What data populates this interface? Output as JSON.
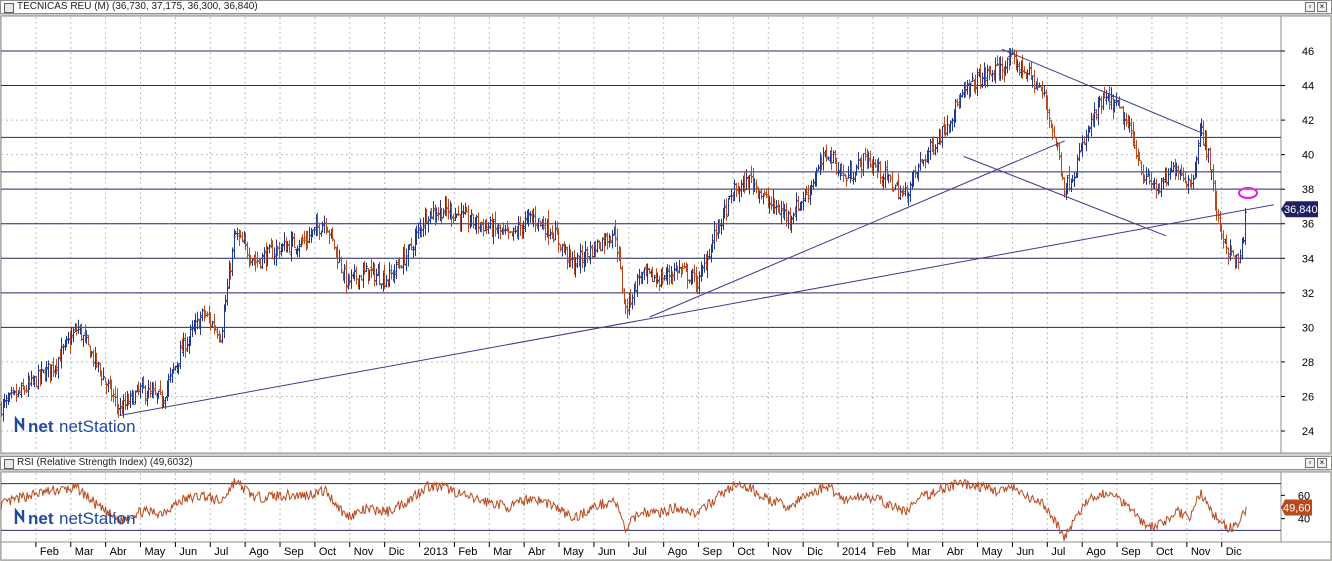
{
  "main_pane": {
    "title": "TECNICAS REU (M) (36,730, 37,175, 36,300, 36,840)",
    "price_tag": "36,840",
    "logo": "netStation"
  },
  "rsi_pane": {
    "title": "RSI (Relative Strength Index) (49,6032)",
    "value_tag": "49,60",
    "logo": "netStation"
  },
  "colors": {
    "background": "#ffffff",
    "grid": "#bdbdbd",
    "horizontal_lines": "#2a2a6a",
    "trendlines": "#3b3b8a",
    "bars_up": "#203890",
    "bars_down": "#b84a1e",
    "rsi_line": "#b84a1e",
    "highlight_ellipse": "#e020e0",
    "price_tag_bg": "#202060",
    "rsi_tag_bg": "#b84a1e"
  },
  "chart_data": [
    {
      "type": "line",
      "subtype": "ohlc-bars",
      "title": "TECNICAS REU (M) (36,730, 37,175, 36,300, 36,840)",
      "ylim": [
        23,
        47
      ],
      "yticks": [
        24,
        26,
        28,
        30,
        32,
        34,
        36,
        38,
        40,
        42,
        44,
        46
      ],
      "ytick_labels": [
        "24",
        "26",
        "28",
        "30",
        "32",
        "34",
        "36",
        "38",
        "40",
        "42",
        "44",
        "46"
      ],
      "x_labels": [
        "Feb",
        "Mar",
        "Abr",
        "May",
        "Jun",
        "Jul",
        "Ago",
        "Sep",
        "Oct",
        "Nov",
        "Dic",
        "2013",
        "Feb",
        "Mar",
        "Abr",
        "May",
        "Jun",
        "Jul",
        "Ago",
        "Sep",
        "Oct",
        "Nov",
        "Dic",
        "2014",
        "Feb",
        "Mar",
        "Abr",
        "May",
        "Jun",
        "Jul",
        "Ago",
        "Sep",
        "Oct",
        "Nov",
        "Dic"
      ],
      "x_range_months": [
        0,
        36.7
      ],
      "x_label_month_index": [
        1,
        2,
        3,
        4,
        5,
        6,
        7,
        8,
        9,
        10,
        11,
        12,
        13,
        14,
        15,
        16,
        17,
        18,
        19,
        20,
        21,
        22,
        23,
        24,
        25,
        26,
        27,
        28,
        29,
        30,
        31,
        32,
        33,
        34,
        35
      ],
      "horizontal_levels": [
        30,
        32,
        34,
        36,
        38,
        39,
        41,
        44,
        46
      ],
      "trendlines": [
        {
          "from": [
            3.4,
            24.9
          ],
          "to": [
            36.5,
            37.1
          ]
        },
        {
          "from": [
            18.6,
            30.6
          ],
          "to": [
            30.5,
            40.8
          ]
        },
        {
          "from": [
            28.7,
            46.1
          ],
          "to": [
            34.5,
            41.2
          ]
        },
        {
          "from": [
            27.6,
            39.9
          ],
          "to": [
            33.4,
            35.3
          ]
        }
      ],
      "price_anchors": [
        [
          0,
          25.4
        ],
        [
          0.8,
          26.6
        ],
        [
          1.5,
          27.8
        ],
        [
          2.2,
          30.0
        ],
        [
          2.8,
          27.6
        ],
        [
          3.4,
          25.2
        ],
        [
          4.0,
          26.4
        ],
        [
          4.6,
          25.8
        ],
        [
          5.2,
          28.8
        ],
        [
          5.8,
          30.8
        ],
        [
          6.3,
          29.6
        ],
        [
          6.7,
          35.4
        ],
        [
          7.3,
          33.8
        ],
        [
          8.0,
          34.6
        ],
        [
          8.7,
          35.0
        ],
        [
          9.3,
          36.2
        ],
        [
          9.9,
          32.6
        ],
        [
          10.5,
          33.2
        ],
        [
          11.1,
          32.8
        ],
        [
          11.7,
          34.4
        ],
        [
          12.2,
          36.6
        ],
        [
          12.8,
          36.8
        ],
        [
          13.4,
          36.2
        ],
        [
          14.0,
          35.8
        ],
        [
          14.6,
          35.2
        ],
        [
          15.2,
          36.4
        ],
        [
          15.8,
          35.6
        ],
        [
          16.4,
          33.6
        ],
        [
          17.0,
          34.6
        ],
        [
          17.6,
          35.6
        ],
        [
          17.9,
          31.0
        ],
        [
          18.3,
          33.0
        ],
        [
          18.9,
          32.8
        ],
        [
          19.4,
          33.4
        ],
        [
          20.0,
          32.6
        ],
        [
          20.5,
          35.6
        ],
        [
          21.0,
          37.8
        ],
        [
          21.5,
          38.6
        ],
        [
          22.0,
          37.2
        ],
        [
          22.6,
          36.4
        ],
        [
          23.1,
          37.8
        ],
        [
          23.7,
          40.2
        ],
        [
          24.2,
          38.6
        ],
        [
          24.8,
          39.8
        ],
        [
          25.3,
          38.8
        ],
        [
          25.9,
          37.6
        ],
        [
          26.4,
          39.6
        ],
        [
          27.0,
          41.4
        ],
        [
          27.5,
          43.2
        ],
        [
          28.0,
          44.4
        ],
        [
          28.5,
          44.8
        ],
        [
          29.0,
          45.4
        ],
        [
          29.4,
          44.8
        ],
        [
          29.9,
          43.4
        ],
        [
          30.3,
          40.2
        ],
        [
          30.5,
          38.0
        ],
        [
          30.8,
          39.2
        ],
        [
          31.2,
          41.6
        ],
        [
          31.6,
          43.2
        ],
        [
          32.0,
          42.8
        ],
        [
          32.4,
          41.2
        ],
        [
          32.8,
          38.6
        ],
        [
          33.2,
          38.0
        ],
        [
          33.7,
          39.4
        ],
        [
          34.1,
          38.2
        ],
        [
          34.4,
          41.4
        ],
        [
          34.6,
          40.2
        ],
        [
          34.9,
          36.0
        ],
        [
          35.2,
          34.4
        ],
        [
          35.5,
          33.6
        ],
        [
          35.7,
          36.84
        ]
      ]
    },
    {
      "type": "line",
      "title": "RSI (Relative Strength Index) (49,6032)",
      "ylim": [
        20,
        80
      ],
      "yticks": [
        40,
        60
      ],
      "ytick_labels": [
        "40",
        "60"
      ],
      "horizontal_levels": [
        30,
        70
      ],
      "last_value": 49.6,
      "rsi_anchors": [
        [
          0,
          52
        ],
        [
          0.8,
          60
        ],
        [
          1.5,
          64
        ],
        [
          2.2,
          66
        ],
        [
          2.8,
          50
        ],
        [
          3.4,
          38
        ],
        [
          4.0,
          46
        ],
        [
          4.6,
          45
        ],
        [
          5.2,
          56
        ],
        [
          5.8,
          60
        ],
        [
          6.3,
          54
        ],
        [
          6.7,
          72
        ],
        [
          7.3,
          58
        ],
        [
          8.0,
          60
        ],
        [
          8.7,
          60
        ],
        [
          9.3,
          64
        ],
        [
          9.9,
          42
        ],
        [
          10.5,
          48
        ],
        [
          11.1,
          46
        ],
        [
          11.7,
          56
        ],
        [
          12.2,
          68
        ],
        [
          12.8,
          66
        ],
        [
          13.4,
          58
        ],
        [
          14.0,
          54
        ],
        [
          14.6,
          50
        ],
        [
          15.2,
          58
        ],
        [
          15.8,
          52
        ],
        [
          16.4,
          40
        ],
        [
          17.0,
          50
        ],
        [
          17.6,
          56
        ],
        [
          17.9,
          30
        ],
        [
          18.3,
          46
        ],
        [
          18.9,
          45
        ],
        [
          19.4,
          50
        ],
        [
          20.0,
          44
        ],
        [
          20.5,
          58
        ],
        [
          21.0,
          68
        ],
        [
          21.5,
          66
        ],
        [
          22.0,
          56
        ],
        [
          22.6,
          50
        ],
        [
          23.1,
          60
        ],
        [
          23.7,
          68
        ],
        [
          24.2,
          56
        ],
        [
          24.8,
          60
        ],
        [
          25.3,
          54
        ],
        [
          25.9,
          46
        ],
        [
          26.4,
          58
        ],
        [
          27.0,
          66
        ],
        [
          27.5,
          70
        ],
        [
          28.0,
          68
        ],
        [
          28.5,
          64
        ],
        [
          29.0,
          66
        ],
        [
          29.4,
          58
        ],
        [
          29.9,
          52
        ],
        [
          30.3,
          34
        ],
        [
          30.5,
          24
        ],
        [
          30.8,
          40
        ],
        [
          31.2,
          56
        ],
        [
          31.6,
          62
        ],
        [
          32.0,
          58
        ],
        [
          32.4,
          50
        ],
        [
          32.8,
          34
        ],
        [
          33.2,
          34
        ],
        [
          33.7,
          46
        ],
        [
          34.1,
          42
        ],
        [
          34.4,
          62
        ],
        [
          34.6,
          52
        ],
        [
          34.9,
          38
        ],
        [
          35.2,
          32
        ],
        [
          35.5,
          34
        ],
        [
          35.7,
          49.6
        ]
      ]
    }
  ]
}
